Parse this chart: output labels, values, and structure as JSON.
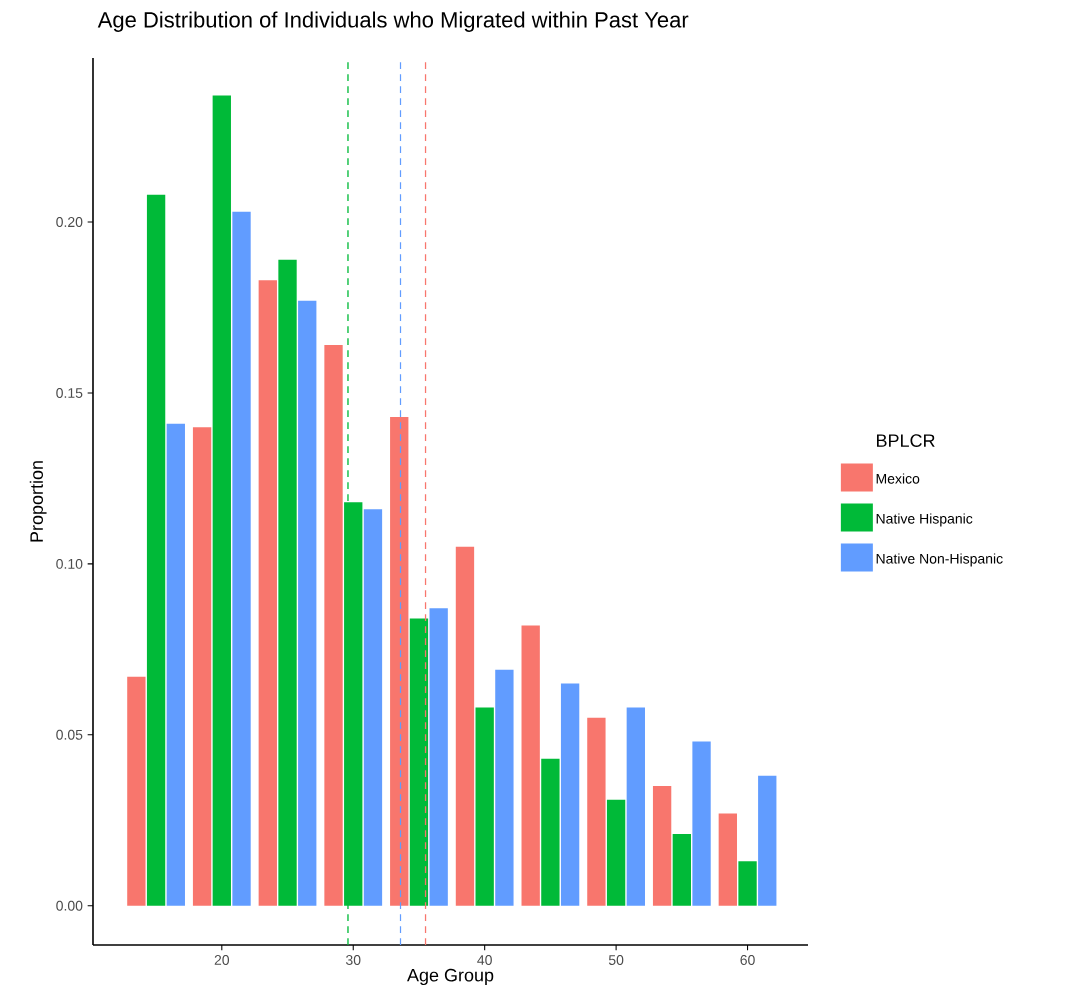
{
  "chart_data": {
    "type": "bar",
    "title": "Age Distribution of Individuals who Migrated within Past Year",
    "xlabel": "Age Group",
    "ylabel": "Proportion",
    "legend_title": "BPLCR",
    "x": [
      15,
      20,
      25,
      30,
      35,
      40,
      45,
      50,
      55,
      60
    ],
    "series": [
      {
        "name": "Mexico",
        "color": "#f8766d",
        "values": [
          0.067,
          0.14,
          0.183,
          0.164,
          0.143,
          0.105,
          0.082,
          0.055,
          0.035,
          0.027
        ]
      },
      {
        "name": "Native Hispanic",
        "color": "#00ba38",
        "values": [
          0.208,
          0.237,
          0.189,
          0.118,
          0.084,
          0.058,
          0.043,
          0.031,
          0.021,
          0.013
        ]
      },
      {
        "name": "Native Non-Hispanic",
        "color": "#619cff",
        "values": [
          0.141,
          0.203,
          0.177,
          0.116,
          0.087,
          0.069,
          0.065,
          0.058,
          0.048,
          0.038
        ]
      }
    ],
    "xlim": [
      10.2,
      64.6
    ],
    "ylim": [
      -0.0115,
      0.248
    ],
    "xticks": [
      20,
      30,
      40,
      50,
      60
    ],
    "yticks": [
      {
        "value": 0,
        "label": "0.00"
      },
      {
        "value": 0.05,
        "label": "0.05"
      },
      {
        "value": 0.1,
        "label": "0.10"
      },
      {
        "value": 0.15,
        "label": "0.15"
      },
      {
        "value": 0.2,
        "label": "0.20"
      }
    ],
    "ref_lines": [
      {
        "axis": "x",
        "value": 29.6,
        "color": "#00ba38",
        "line_style": "dashed"
      },
      {
        "axis": "x",
        "value": 33.6,
        "color": "#619cff",
        "line_style": "dashed"
      },
      {
        "axis": "x",
        "value": 35.5,
        "color": "#f8766d",
        "line_style": "dashed"
      }
    ],
    "grid": false,
    "legend": "right"
  }
}
